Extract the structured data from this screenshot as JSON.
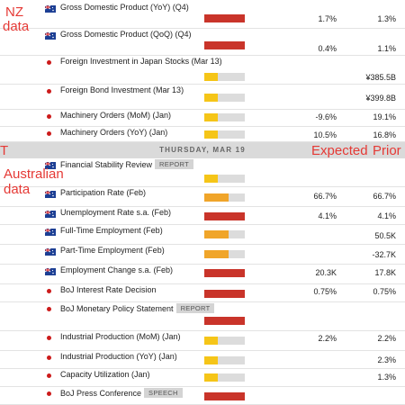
{
  "colors": {
    "high_impact": "#c9342a",
    "medium_impact": "#f0a52a",
    "low_impact": "#f5c518",
    "annotation": "#e53935"
  },
  "annotations": {
    "nz_line1": "NZ",
    "nz_line2": "data",
    "partial_t": "T",
    "australian_line1": "Australian",
    "australian_line2": "data",
    "expected_header": "Expected",
    "prior_header": "Prior"
  },
  "day_header": "THURSDAY, MAR 19",
  "events": [
    {
      "country": "NZ",
      "marker": "flag-icon",
      "name": "Gross Domestic Product (YoY) (Q4)",
      "badge": "",
      "impact_color": "#c9342a",
      "impact_level": 1.0,
      "expected": "1.7%",
      "prior": "1.3%"
    },
    {
      "country": "NZ",
      "marker": "flag-icon",
      "name": "Gross Domestic Product (QoQ) (Q4)",
      "badge": "",
      "impact_color": "#c9342a",
      "impact_level": 1.0,
      "expected": "0.4%",
      "prior": "1.1%"
    },
    {
      "country": "JP",
      "marker": "dot-icon",
      "name": "Foreign Investment in Japan Stocks (Mar 13)",
      "badge": "",
      "impact_color": "#f5c518",
      "impact_level": 0.33,
      "expected": "",
      "prior": "¥385.5B"
    },
    {
      "country": "JP",
      "marker": "dot-icon",
      "name": "Foreign Bond Investment (Mar 13)",
      "badge": "",
      "impact_color": "#f5c518",
      "impact_level": 0.33,
      "expected": "",
      "prior": "¥399.8B"
    },
    {
      "country": "JP",
      "marker": "dot-icon",
      "name": "Machinery Orders (MoM) (Jan)",
      "badge": "",
      "impact_color": "#f5c518",
      "impact_level": 0.33,
      "expected": "-9.6%",
      "prior": "19.1%"
    },
    {
      "country": "JP",
      "marker": "dot-icon",
      "name": "Machinery Orders (YoY) (Jan)",
      "badge": "",
      "impact_color": "#f5c518",
      "impact_level": 0.33,
      "expected": "10.5%",
      "prior": "16.8%"
    },
    {
      "country": "AU",
      "marker": "flag-icon",
      "name": "Financial Stability Review",
      "badge": "REPORT",
      "impact_color": "#f5c518",
      "impact_level": 0.33,
      "expected": "",
      "prior": ""
    },
    {
      "country": "AU",
      "marker": "flag-icon",
      "name": "Participation Rate (Feb)",
      "badge": "",
      "impact_color": "#f0a52a",
      "impact_level": 0.6,
      "expected": "66.7%",
      "prior": "66.7%"
    },
    {
      "country": "AU",
      "marker": "flag-icon",
      "name": "Unemployment Rate s.a. (Feb)",
      "badge": "",
      "impact_color": "#c9342a",
      "impact_level": 1.0,
      "expected": "4.1%",
      "prior": "4.1%"
    },
    {
      "country": "AU",
      "marker": "flag-icon",
      "name": "Full-Time Employment (Feb)",
      "badge": "",
      "impact_color": "#f0a52a",
      "impact_level": 0.6,
      "expected": "",
      "prior": "50.5K"
    },
    {
      "country": "AU",
      "marker": "flag-icon",
      "name": "Part-Time Employment (Feb)",
      "badge": "",
      "impact_color": "#f0a52a",
      "impact_level": 0.6,
      "expected": "",
      "prior": "-32.7K"
    },
    {
      "country": "AU",
      "marker": "flag-icon",
      "name": "Employment Change s.a. (Feb)",
      "badge": "",
      "impact_color": "#c9342a",
      "impact_level": 1.0,
      "expected": "20.3K",
      "prior": "17.8K"
    },
    {
      "country": "JP",
      "marker": "dot-icon",
      "name": "BoJ Interest Rate Decision",
      "badge": "",
      "impact_color": "#c9342a",
      "impact_level": 1.0,
      "expected": "0.75%",
      "prior": "0.75%"
    },
    {
      "country": "JP",
      "marker": "dot-icon",
      "name": "BoJ Monetary Policy Statement",
      "badge": "REPORT",
      "impact_color": "#c9342a",
      "impact_level": 1.0,
      "expected": "",
      "prior": ""
    },
    {
      "country": "JP",
      "marker": "dot-icon",
      "name": "Industrial Production (MoM) (Jan)",
      "badge": "",
      "impact_color": "#f5c518",
      "impact_level": 0.33,
      "expected": "2.2%",
      "prior": "2.2%"
    },
    {
      "country": "JP",
      "marker": "dot-icon",
      "name": "Industrial Production (YoY) (Jan)",
      "badge": "",
      "impact_color": "#f5c518",
      "impact_level": 0.33,
      "expected": "",
      "prior": "2.3%"
    },
    {
      "country": "JP",
      "marker": "dot-icon",
      "name": "Capacity Utilization (Jan)",
      "badge": "",
      "impact_color": "#f5c518",
      "impact_level": 0.33,
      "expected": "",
      "prior": "1.3%"
    },
    {
      "country": "JP",
      "marker": "dot-icon",
      "name": "BoJ Press Conference",
      "badge": "SPEECH",
      "impact_color": "#c9342a",
      "impact_level": 1.0,
      "expected": "",
      "prior": ""
    }
  ]
}
